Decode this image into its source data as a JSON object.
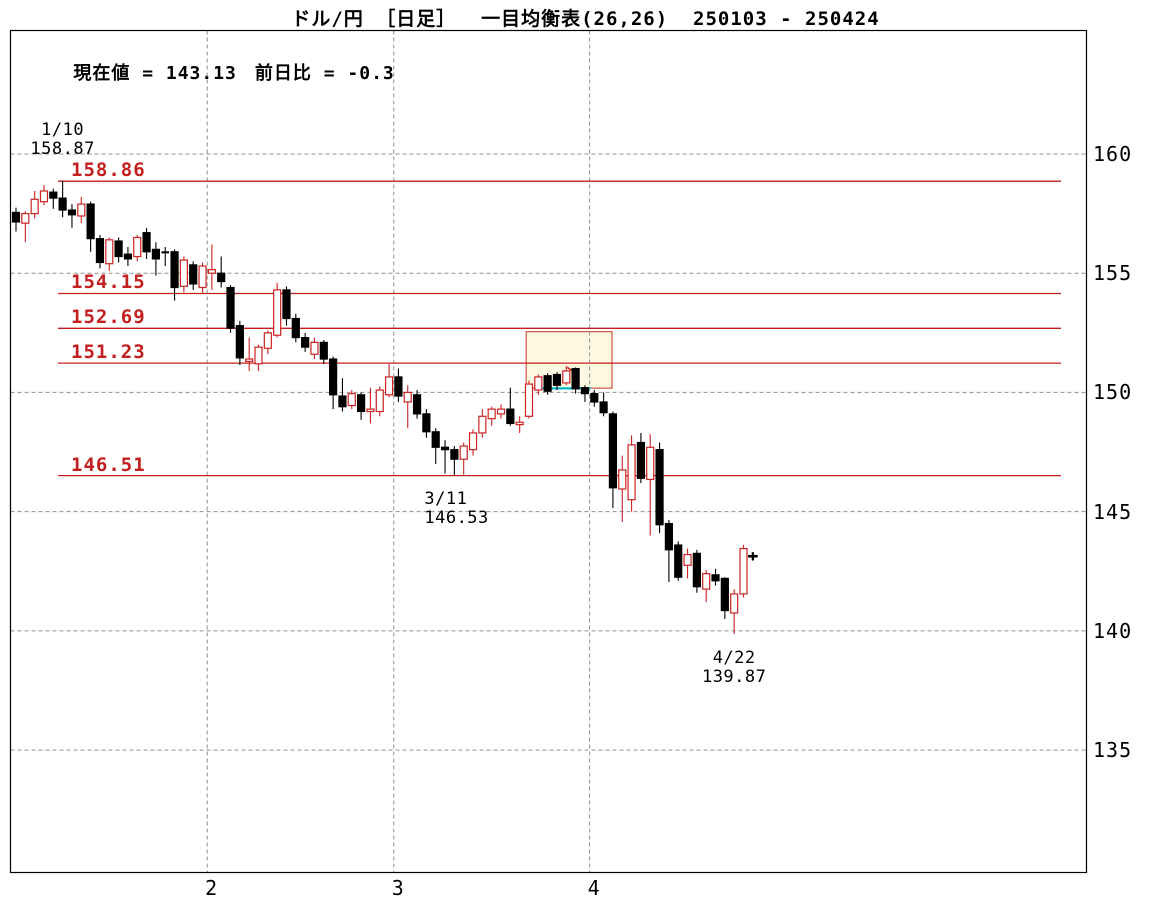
{
  "title": "ドル/円 ［日足］  一目均衡表(26,26)  250103 - 250424",
  "status": {
    "current_text": "現在値 = 143.13",
    "change_text": "前日比 = -0.3",
    "current_value": 143.13,
    "change_value": -0.3
  },
  "chart_data": {
    "type": "candlestick",
    "pair": "ドル/円",
    "timeframe": "日足",
    "indicator": "一目均衡表(26,26)",
    "period": "250103 - 250424",
    "colors": {
      "bull": "#cc2222",
      "bear": "#000000",
      "level": "#c41f1f",
      "grid": "#909090",
      "box_fill": "#fcf8e2",
      "box_border": "#cc5544",
      "cyan_line": "#00b8c8"
    },
    "y_axis": {
      "side": "right",
      "ticks": [
        160,
        155,
        150,
        145,
        140,
        135
      ]
    },
    "x_axis": {
      "months": [
        {
          "label": "2",
          "first_candle_index": 21
        },
        {
          "label": "3",
          "first_candle_index": 41
        },
        {
          "label": "4",
          "first_candle_index": 62
        }
      ]
    },
    "levels": [
      "158.86",
      "154.15",
      "152.69",
      "151.23",
      "146.51"
    ],
    "annotations": [
      {
        "date": "1/10",
        "value": "158.87",
        "position": "above",
        "align": "center"
      },
      {
        "date": "3/11",
        "value": "146.53",
        "position": "below",
        "align": "left"
      },
      {
        "date": "4/22",
        "value": "139.87",
        "position": "below",
        "align": "center"
      }
    ],
    "highlight_box": {
      "start_index": 54.7,
      "end_index": 63.9,
      "top_price": 152.55,
      "bottom_price": 150.18
    },
    "extra_marks": [
      {
        "type": "cyan_segment",
        "price": 150.17,
        "start_index": 56.1,
        "end_index": 61.6
      },
      {
        "type": "red_segment",
        "x1_index": 59.1,
        "p1": 151.05,
        "x2_index": 60.2,
        "p2": 150.75
      }
    ],
    "candles": [
      {
        "d": "1/3",
        "o": 157.55,
        "h": 157.75,
        "l": 156.75,
        "c": 157.15
      },
      {
        "d": "1/6",
        "o": 157.1,
        "h": 157.6,
        "l": 156.3,
        "c": 157.5
      },
      {
        "d": "1/7",
        "o": 157.5,
        "h": 158.45,
        "l": 157.3,
        "c": 158.1
      },
      {
        "d": "1/8",
        "o": 158.0,
        "h": 158.7,
        "l": 157.85,
        "c": 158.45
      },
      {
        "d": "1/9",
        "o": 158.4,
        "h": 158.55,
        "l": 157.7,
        "c": 158.15
      },
      {
        "d": "1/10",
        "o": 158.15,
        "h": 158.87,
        "l": 157.35,
        "c": 157.65
      },
      {
        "d": "1/13",
        "o": 157.65,
        "h": 157.9,
        "l": 156.9,
        "c": 157.45
      },
      {
        "d": "1/14",
        "o": 157.4,
        "h": 158.2,
        "l": 157.1,
        "c": 157.9
      },
      {
        "d": "1/15",
        "o": 157.9,
        "h": 158.0,
        "l": 155.9,
        "c": 156.45
      },
      {
        "d": "1/16",
        "o": 156.45,
        "h": 156.6,
        "l": 155.2,
        "c": 155.45
      },
      {
        "d": "1/17",
        "o": 155.4,
        "h": 156.5,
        "l": 155.1,
        "c": 156.4
      },
      {
        "d": "1/20",
        "o": 156.35,
        "h": 156.5,
        "l": 155.45,
        "c": 155.7
      },
      {
        "d": "1/21",
        "o": 155.8,
        "h": 156.1,
        "l": 155.3,
        "c": 155.6
      },
      {
        "d": "1/22",
        "o": 155.7,
        "h": 156.6,
        "l": 155.5,
        "c": 156.5
      },
      {
        "d": "1/23",
        "o": 156.7,
        "h": 156.9,
        "l": 155.6,
        "c": 155.9
      },
      {
        "d": "1/24",
        "o": 156.0,
        "h": 156.3,
        "l": 154.9,
        "c": 155.6
      },
      {
        "d": "1/27",
        "o": 155.9,
        "h": 156.1,
        "l": 155.3,
        "c": 155.85
      },
      {
        "d": "1/28",
        "o": 155.9,
        "h": 156.0,
        "l": 153.85,
        "c": 154.4
      },
      {
        "d": "1/29",
        "o": 154.45,
        "h": 155.7,
        "l": 154.2,
        "c": 155.55
      },
      {
        "d": "1/30",
        "o": 155.35,
        "h": 155.5,
        "l": 154.3,
        "c": 154.55
      },
      {
        "d": "1/31",
        "o": 154.4,
        "h": 155.45,
        "l": 154.15,
        "c": 155.3
      },
      {
        "d": "2/3",
        "o": 155.0,
        "h": 156.2,
        "l": 154.3,
        "c": 155.15
      },
      {
        "d": "2/4",
        "o": 155.0,
        "h": 155.7,
        "l": 154.4,
        "c": 154.65
      },
      {
        "d": "2/5",
        "o": 154.4,
        "h": 154.5,
        "l": 152.5,
        "c": 152.7
      },
      {
        "d": "2/6",
        "o": 152.8,
        "h": 153.0,
        "l": 151.15,
        "c": 151.45
      },
      {
        "d": "2/7",
        "o": 151.3,
        "h": 152.3,
        "l": 150.9,
        "c": 151.4
      },
      {
        "d": "2/10",
        "o": 151.2,
        "h": 152.0,
        "l": 150.9,
        "c": 151.9
      },
      {
        "d": "2/11",
        "o": 151.85,
        "h": 152.6,
        "l": 151.6,
        "c": 152.5
      },
      {
        "d": "2/12",
        "o": 152.4,
        "h": 154.6,
        "l": 152.3,
        "c": 154.3
      },
      {
        "d": "2/13",
        "o": 154.3,
        "h": 154.45,
        "l": 152.8,
        "c": 153.1
      },
      {
        "d": "2/14",
        "o": 153.1,
        "h": 153.3,
        "l": 152.1,
        "c": 152.3
      },
      {
        "d": "2/17",
        "o": 152.3,
        "h": 152.5,
        "l": 151.7,
        "c": 151.9
      },
      {
        "d": "2/18",
        "o": 151.6,
        "h": 152.3,
        "l": 151.4,
        "c": 152.1
      },
      {
        "d": "2/19",
        "o": 152.1,
        "h": 152.2,
        "l": 151.2,
        "c": 151.4
      },
      {
        "d": "2/20",
        "o": 151.4,
        "h": 151.5,
        "l": 149.3,
        "c": 149.9
      },
      {
        "d": "2/21",
        "o": 149.85,
        "h": 150.6,
        "l": 149.2,
        "c": 149.4
      },
      {
        "d": "2/24",
        "o": 149.45,
        "h": 150.1,
        "l": 149.3,
        "c": 149.95
      },
      {
        "d": "2/25",
        "o": 149.9,
        "h": 150.0,
        "l": 148.85,
        "c": 149.2
      },
      {
        "d": "2/26",
        "o": 149.2,
        "h": 150.2,
        "l": 148.7,
        "c": 149.3
      },
      {
        "d": "2/27",
        "o": 149.2,
        "h": 150.25,
        "l": 149.0,
        "c": 150.1
      },
      {
        "d": "2/28",
        "o": 149.9,
        "h": 151.2,
        "l": 149.8,
        "c": 150.65
      },
      {
        "d": "3/3",
        "o": 150.65,
        "h": 151.0,
        "l": 149.6,
        "c": 149.85
      },
      {
        "d": "3/4",
        "o": 149.6,
        "h": 150.3,
        "l": 148.5,
        "c": 150.0
      },
      {
        "d": "3/5",
        "o": 149.9,
        "h": 150.1,
        "l": 148.9,
        "c": 149.1
      },
      {
        "d": "3/6",
        "o": 149.1,
        "h": 149.3,
        "l": 148.1,
        "c": 148.35
      },
      {
        "d": "3/7",
        "o": 148.35,
        "h": 148.5,
        "l": 147.0,
        "c": 147.7
      },
      {
        "d": "3/10",
        "o": 147.7,
        "h": 148.0,
        "l": 146.6,
        "c": 147.6
      },
      {
        "d": "3/11",
        "o": 147.6,
        "h": 147.75,
        "l": 146.53,
        "c": 147.2
      },
      {
        "d": "3/12",
        "o": 147.2,
        "h": 147.9,
        "l": 146.55,
        "c": 147.75
      },
      {
        "d": "3/13",
        "o": 147.6,
        "h": 148.45,
        "l": 147.35,
        "c": 148.3
      },
      {
        "d": "3/14",
        "o": 148.3,
        "h": 149.3,
        "l": 148.1,
        "c": 149.0
      },
      {
        "d": "3/17",
        "o": 148.9,
        "h": 149.4,
        "l": 148.6,
        "c": 149.3
      },
      {
        "d": "3/18",
        "o": 149.1,
        "h": 149.5,
        "l": 148.9,
        "c": 149.3
      },
      {
        "d": "3/19",
        "o": 149.3,
        "h": 150.2,
        "l": 148.6,
        "c": 148.7
      },
      {
        "d": "3/20",
        "o": 148.65,
        "h": 149.0,
        "l": 148.3,
        "c": 148.75
      },
      {
        "d": "3/21",
        "o": 149.0,
        "h": 150.5,
        "l": 148.9,
        "c": 150.35
      },
      {
        "d": "3/24",
        "o": 150.1,
        "h": 150.75,
        "l": 149.9,
        "c": 150.65
      },
      {
        "d": "3/25",
        "o": 150.7,
        "h": 150.8,
        "l": 149.9,
        "c": 150.05
      },
      {
        "d": "3/26",
        "o": 150.75,
        "h": 150.85,
        "l": 150.1,
        "c": 150.3
      },
      {
        "d": "3/27",
        "o": 150.4,
        "h": 151.1,
        "l": 150.3,
        "c": 150.9
      },
      {
        "d": "3/28",
        "o": 151.0,
        "h": 151.05,
        "l": 149.95,
        "c": 150.15
      },
      {
        "d": "3/31",
        "o": 150.2,
        "h": 150.3,
        "l": 149.6,
        "c": 149.95
      },
      {
        "d": "4/1",
        "o": 149.95,
        "h": 150.1,
        "l": 149.4,
        "c": 149.6
      },
      {
        "d": "4/2",
        "o": 149.6,
        "h": 150.0,
        "l": 149.0,
        "c": 149.15
      },
      {
        "d": "4/3",
        "o": 149.1,
        "h": 149.2,
        "l": 145.15,
        "c": 146.0
      },
      {
        "d": "4/4",
        "o": 145.95,
        "h": 147.35,
        "l": 144.56,
        "c": 146.75
      },
      {
        "d": "4/7",
        "o": 145.5,
        "h": 148.2,
        "l": 145.0,
        "c": 147.8
      },
      {
        "d": "4/8",
        "o": 147.9,
        "h": 148.3,
        "l": 146.2,
        "c": 146.4
      },
      {
        "d": "4/9",
        "o": 146.35,
        "h": 148.25,
        "l": 144.0,
        "c": 147.7
      },
      {
        "d": "4/10",
        "o": 147.6,
        "h": 147.9,
        "l": 144.1,
        "c": 144.45
      },
      {
        "d": "4/11",
        "o": 144.5,
        "h": 144.65,
        "l": 142.05,
        "c": 143.4
      },
      {
        "d": "4/14",
        "o": 143.6,
        "h": 143.75,
        "l": 142.1,
        "c": 142.25
      },
      {
        "d": "4/15",
        "o": 142.75,
        "h": 143.45,
        "l": 142.2,
        "c": 143.2
      },
      {
        "d": "4/16",
        "o": 143.25,
        "h": 143.4,
        "l": 141.6,
        "c": 141.85
      },
      {
        "d": "4/17",
        "o": 141.75,
        "h": 142.55,
        "l": 141.2,
        "c": 142.4
      },
      {
        "d": "4/18",
        "o": 142.35,
        "h": 142.6,
        "l": 141.9,
        "c": 142.1
      },
      {
        "d": "4/21",
        "o": 142.2,
        "h": 142.25,
        "l": 140.5,
        "c": 140.85
      },
      {
        "d": "4/22",
        "o": 140.75,
        "h": 141.75,
        "l": 139.87,
        "c": 141.55
      },
      {
        "d": "4/23",
        "o": 141.55,
        "h": 143.6,
        "l": 141.4,
        "c": 143.45
      },
      {
        "d": "4/24",
        "o": 143.15,
        "h": 143.3,
        "l": 142.95,
        "c": 143.13,
        "current": true
      }
    ]
  }
}
